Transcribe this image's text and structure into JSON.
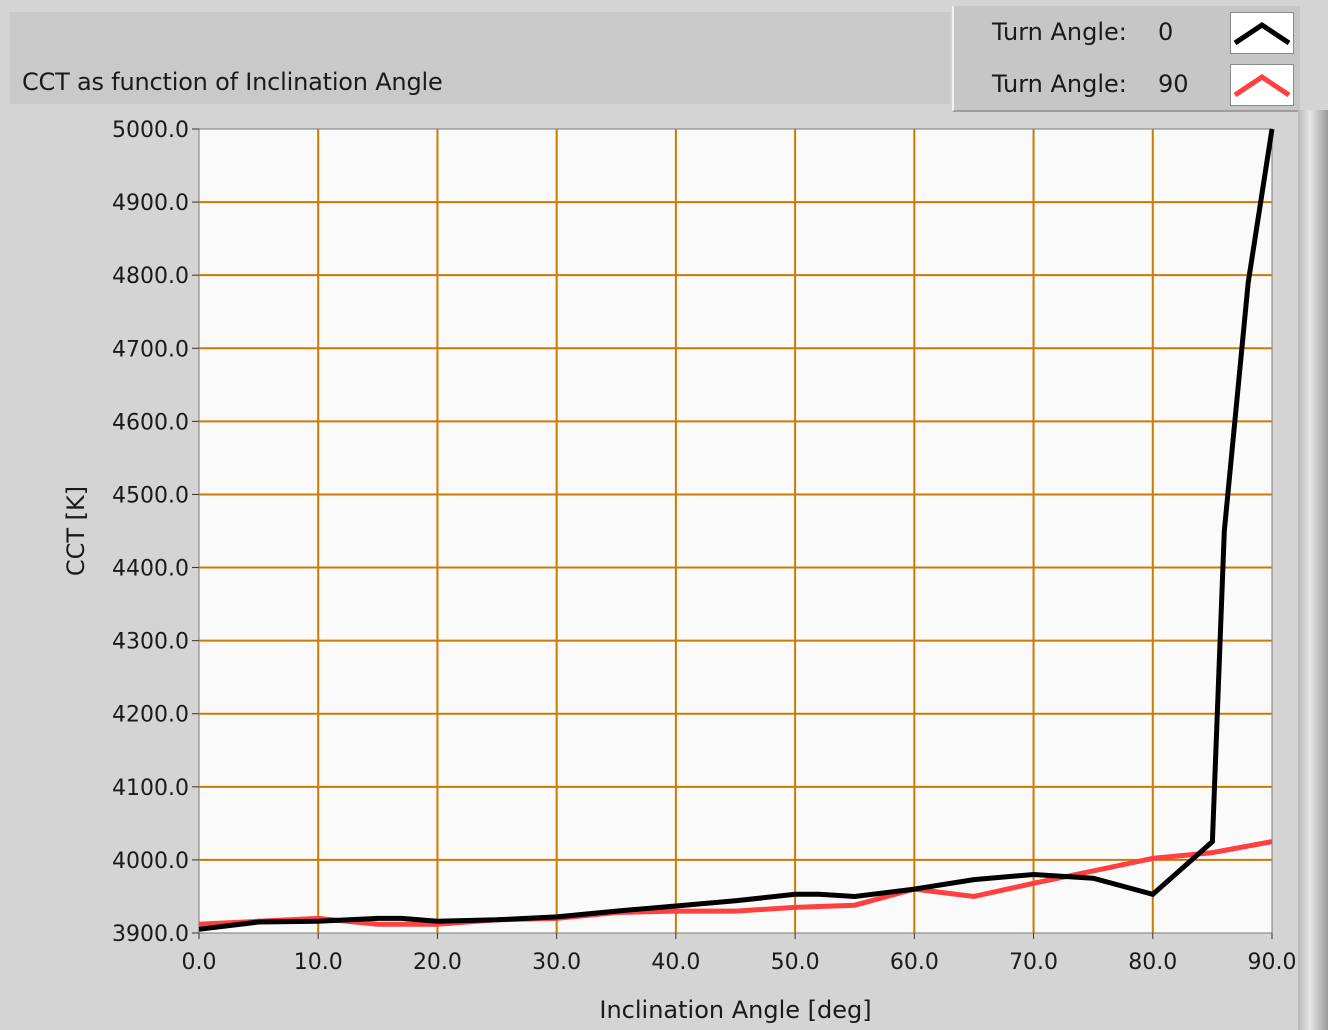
{
  "title": "CCT as function of Inclination Angle",
  "legend": [
    {
      "label": "Turn Angle:",
      "value": "0",
      "color": "#000000"
    },
    {
      "label": "Turn Angle:",
      "value": "90",
      "color": "#ff4040"
    }
  ],
  "colors": {
    "background": "#d4d4d4",
    "plot_background": "#fafafa",
    "grid": "#cc7a00",
    "series_0": "#000000",
    "series_90": "#ff4040"
  },
  "chart_data": {
    "type": "line",
    "title": "CCT as function of Inclination Angle",
    "xlabel": "Inclination Angle [deg]",
    "ylabel": "CCT [K]",
    "xlim": [
      0,
      90
    ],
    "ylim": [
      3900,
      5000
    ],
    "grid": true,
    "legend_position": "top-right",
    "x_ticks": [
      "0.0",
      "10.0",
      "20.0",
      "30.0",
      "40.0",
      "50.0",
      "60.0",
      "70.0",
      "80.0",
      "90.0"
    ],
    "y_ticks": [
      "3900.0",
      "4000.0",
      "4100.0",
      "4200.0",
      "4300.0",
      "4400.0",
      "4500.0",
      "4600.0",
      "4700.0",
      "4800.0",
      "4900.0",
      "5000.0"
    ],
    "series": [
      {
        "name": "Turn Angle: 0",
        "color": "#000000",
        "x": [
          0,
          5,
          10,
          15,
          17,
          20,
          25,
          30,
          35,
          40,
          45,
          50,
          52,
          55,
          60,
          65,
          70,
          72,
          75,
          80,
          85,
          86,
          88,
          90
        ],
        "y": [
          3905,
          3915,
          3916,
          3920,
          3920,
          3916,
          3918,
          3922,
          3930,
          3937,
          3944,
          3953,
          3953,
          3950,
          3960,
          3973,
          3980,
          3978,
          3975,
          3953,
          4025,
          4450,
          4790,
          5000
        ]
      },
      {
        "name": "Turn Angle: 90",
        "color": "#ff4040",
        "x": [
          0,
          5,
          10,
          15,
          20,
          25,
          30,
          35,
          40,
          45,
          50,
          55,
          60,
          65,
          70,
          75,
          80,
          85,
          90
        ],
        "y": [
          3912,
          3916,
          3920,
          3912,
          3912,
          3918,
          3920,
          3928,
          3930,
          3930,
          3935,
          3938,
          3960,
          3950,
          3968,
          3985,
          4002,
          4010,
          4025
        ]
      }
    ]
  }
}
